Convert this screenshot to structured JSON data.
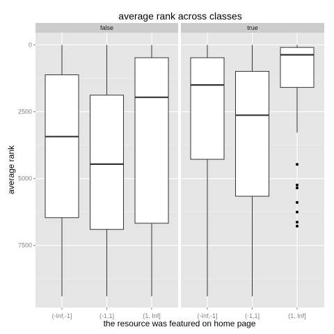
{
  "chart_data": {
    "type": "boxplot",
    "title": "average rank across classes",
    "xlabel": "the resource was featured on home page",
    "ylabel": "average rank",
    "y_reversed": true,
    "ylim": [
      0,
      9900
    ],
    "yticks": [
      0,
      2500,
      5000,
      7500
    ],
    "ytick_labels": [
      "0",
      "2500",
      "5000",
      "7500"
    ],
    "categories": [
      "(-Inf,-1]",
      "(-1,1]",
      "(1, Inf]"
    ],
    "panels": [
      {
        "name": "false",
        "boxes": [
          {
            "category": "(-Inf,-1]",
            "min": 0,
            "q1": 1120,
            "median": 3430,
            "q3": 6460,
            "max": 9400,
            "outliers": []
          },
          {
            "category": "(-1,1]",
            "min": 0,
            "q1": 1880,
            "median": 4460,
            "q3": 6900,
            "max": 9400,
            "outliers": []
          },
          {
            "category": "(1, Inf]",
            "min": 0,
            "q1": 480,
            "median": 1960,
            "q3": 6670,
            "max": 9400,
            "outliers": []
          }
        ]
      },
      {
        "name": "true",
        "boxes": [
          {
            "category": "(-Inf,-1]",
            "min": 0,
            "q1": 480,
            "median": 1500,
            "q3": 4280,
            "max": 9400,
            "outliers": []
          },
          {
            "category": "(-1,1]",
            "min": 0,
            "q1": 990,
            "median": 2630,
            "q3": 5660,
            "max": 9400,
            "outliers": []
          },
          {
            "category": "(1, Inf]",
            "min": 0,
            "q1": 95,
            "median": 370,
            "q3": 1590,
            "max": 3280,
            "outliers": [
              4470,
              5240,
              5350,
              5890,
              6250,
              6630,
              6780
            ]
          }
        ]
      }
    ],
    "colors": {
      "panel_background": "#e5e5e5",
      "strip_background": "#cccccc",
      "grid_major": "#ffffff",
      "grid_minor": "#f2f2f2",
      "box_fill": "#ffffff",
      "box_stroke": "#333333",
      "median": "#333333",
      "outlier": "#000000"
    }
  }
}
